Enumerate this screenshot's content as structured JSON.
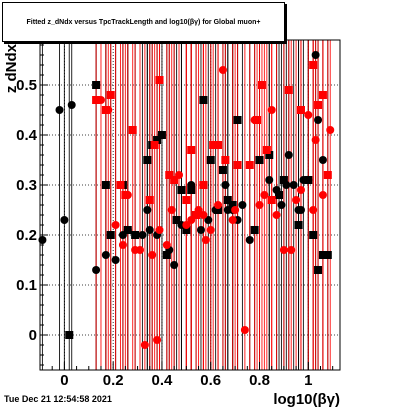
{
  "chart_data": {
    "type": "scatter",
    "title": "Fitted z_dNdx versus TpcTrackLength and log10(βγ) for Global muon+",
    "xlabel": "log10(βγ)",
    "ylabel": "z dNdx",
    "xlim": [
      -0.1,
      1.13
    ],
    "ylim": [
      -0.07,
      0.59
    ],
    "x_ticks": [
      "0",
      "0.2",
      "0.4",
      "0.6",
      "0.8",
      "1"
    ],
    "y_ticks": [
      "0",
      "0.1",
      "0.2",
      "0.3",
      "0.4",
      "0.5"
    ],
    "grid": true,
    "series": [
      {
        "marker": "circle",
        "color": "#000000",
        "x": [
          -0.09,
          -0.02,
          0.0,
          0.03,
          0.13,
          0.17,
          0.21,
          0.24,
          0.26,
          0.32,
          0.34,
          0.35,
          0.38,
          0.43,
          0.45,
          0.48,
          0.52,
          0.56,
          0.59,
          0.62,
          0.66,
          0.67,
          0.69,
          0.71,
          0.73,
          0.76,
          0.84,
          0.87,
          0.89,
          0.91,
          0.92,
          0.94,
          0.96,
          0.97,
          0.98,
          1.0,
          1.03,
          1.04,
          1.06
        ],
        "y": [
          0.19,
          0.45,
          0.23,
          0.46,
          0.13,
          0.16,
          0.15,
          0.2,
          0.21,
          0.2,
          0.25,
          0.21,
          0.2,
          0.17,
          0.14,
          0.22,
          0.3,
          0.21,
          0.23,
          0.25,
          0.3,
          0.25,
          0.25,
          0.23,
          0.26,
          0.19,
          0.31,
          0.29,
          0.26,
          0.3,
          0.36,
          0.3,
          0.25,
          0.25,
          0.31,
          0.31,
          0.56,
          0.43,
          0.35
        ]
      },
      {
        "marker": "square",
        "color": "#000000",
        "x": [
          0.02,
          0.13,
          0.17,
          0.19,
          0.24,
          0.26,
          0.29,
          0.34,
          0.36,
          0.38,
          0.4,
          0.42,
          0.46,
          0.48,
          0.5,
          0.52,
          0.54,
          0.57,
          0.6,
          0.63,
          0.65,
          0.67,
          0.69,
          0.71,
          0.78,
          0.8,
          0.84,
          0.88,
          0.9,
          0.96,
          1.0,
          1.02,
          1.04,
          1.06,
          1.08
        ],
        "y": [
          0.0,
          0.5,
          0.3,
          0.2,
          0.3,
          0.21,
          0.2,
          0.35,
          0.38,
          0.39,
          0.4,
          0.16,
          0.23,
          0.29,
          0.21,
          0.29,
          0.24,
          0.47,
          0.35,
          0.25,
          0.33,
          0.27,
          0.26,
          0.43,
          0.21,
          0.35,
          0.36,
          0.28,
          0.31,
          0.22,
          0.31,
          0.2,
          0.13,
          0.16,
          0.16
        ]
      },
      {
        "marker": "circle",
        "color": "#ff0000",
        "x": [
          0.15,
          0.18,
          0.21,
          0.24,
          0.26,
          0.29,
          0.31,
          0.33,
          0.36,
          0.38,
          0.39,
          0.42,
          0.44,
          0.47,
          0.5,
          0.52,
          0.55,
          0.57,
          0.58,
          0.6,
          0.63,
          0.65,
          0.69,
          0.7,
          0.74,
          0.78,
          0.8,
          0.82,
          0.85,
          0.87,
          0.9,
          0.93,
          0.95,
          0.97,
          1.0,
          1.02,
          1.03,
          1.06,
          1.09
        ],
        "y": [
          0.47,
          0.45,
          0.22,
          0.18,
          0.28,
          0.17,
          0.17,
          -0.02,
          0.16,
          -0.01,
          0.21,
          0.18,
          0.25,
          0.32,
          0.22,
          0.23,
          0.25,
          0.24,
          0.19,
          0.21,
          0.26,
          0.53,
          0.23,
          0.25,
          0.01,
          0.43,
          0.26,
          0.28,
          0.45,
          0.24,
          0.17,
          0.17,
          0.27,
          0.29,
          0.44,
          0.25,
          0.39,
          0.28,
          0.41
        ]
      },
      {
        "marker": "square",
        "color": "#ff0000",
        "x": [
          0.13,
          0.17,
          0.19,
          0.23,
          0.25,
          0.28,
          0.35,
          0.37,
          0.39,
          0.43,
          0.45,
          0.5,
          0.52,
          0.54,
          0.57,
          0.61,
          0.63,
          0.66,
          0.71,
          0.76,
          0.79,
          0.81,
          0.83,
          0.85,
          0.92,
          0.97,
          1.02,
          1.04,
          1.06,
          1.08
        ],
        "y": [
          0.47,
          0.45,
          0.48,
          0.3,
          0.28,
          0.41,
          0.27,
          0.38,
          0.51,
          0.32,
          0.31,
          0.27,
          0.37,
          0.24,
          0.3,
          0.38,
          0.38,
          0.35,
          0.34,
          0.34,
          0.43,
          0.5,
          0.37,
          0.27,
          0.49,
          0.45,
          0.54,
          0.46,
          0.48,
          0.32
        ]
      }
    ]
  },
  "footer_text": "Tue Dec 21 12:54:58 2021"
}
